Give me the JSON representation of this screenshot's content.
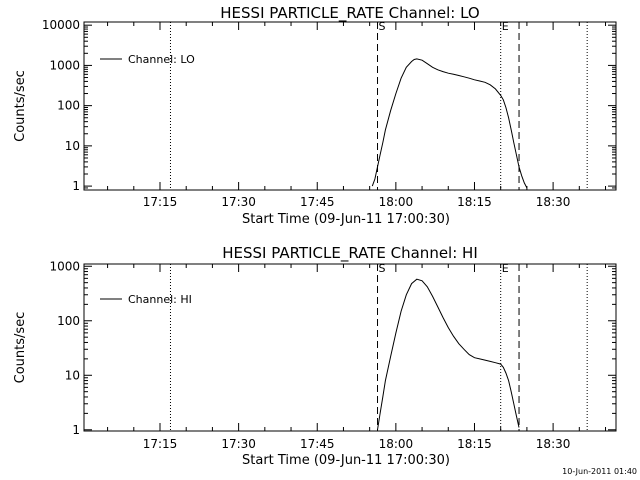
{
  "footer": {
    "timestamp": "10-Jun-2011 01:40"
  },
  "chart_data": [
    {
      "type": "line",
      "title": "HESSI PARTICLE_RATE Channel: LO",
      "xlabel": "Start Time (09-Jun-11 17:00:30)",
      "ylabel": "Counts/sec",
      "yscale": "log",
      "ylim": [
        0.8,
        12000
      ],
      "xlim": [
        "17:00:30",
        "18:42:00"
      ],
      "x_ticks": [
        "17:15",
        "17:30",
        "17:45",
        "18:00",
        "18:15",
        "18:30"
      ],
      "y_ticks": [
        "1",
        "10",
        "100",
        "1000",
        "10000"
      ],
      "legend": {
        "position": "top-left",
        "entries": [
          "Channel: LO"
        ]
      },
      "markers": [
        {
          "label": "",
          "time": "17:00:30",
          "style": "dotted"
        },
        {
          "label": "",
          "time": "17:17:00",
          "style": "dotted"
        },
        {
          "label": "S",
          "time": "17:56:30",
          "style": "dashed"
        },
        {
          "label": "E",
          "time": "18:20:00",
          "style": "dotted"
        },
        {
          "label": "",
          "time": "18:23:30",
          "style": "dashed"
        },
        {
          "label": "",
          "time": "18:36:30",
          "style": "dotted"
        }
      ],
      "series": [
        {
          "name": "Channel: LO",
          "x": [
            "17:55:30",
            "17:56:00",
            "17:56:30",
            "17:57:00",
            "17:57:30",
            "17:58:00",
            "17:59:00",
            "18:00:00",
            "18:01:00",
            "18:02:00",
            "18:03:00",
            "18:03:30",
            "18:04:00",
            "18:05:00",
            "18:06:00",
            "18:07:00",
            "18:08:00",
            "18:09:00",
            "18:10:00",
            "18:11:00",
            "18:12:00",
            "18:13:00",
            "18:14:00",
            "18:15:00",
            "18:16:00",
            "18:17:00",
            "18:18:00",
            "18:19:00",
            "18:20:00",
            "18:20:30",
            "18:21:00",
            "18:21:30",
            "18:22:00",
            "18:22:30",
            "18:23:00",
            "18:23:30",
            "18:24:00",
            "18:24:30",
            "18:25:00"
          ],
          "y": [
            1,
            1.5,
            3,
            6,
            12,
            25,
            75,
            200,
            480,
            900,
            1250,
            1400,
            1450,
            1350,
            1100,
            900,
            780,
            700,
            640,
            600,
            560,
            520,
            480,
            440,
            410,
            380,
            330,
            260,
            180,
            140,
            90,
            50,
            25,
            12,
            6,
            3,
            1.8,
            1.2,
            0.9
          ]
        }
      ]
    },
    {
      "type": "line",
      "title": "HESSI PARTICLE_RATE Channel: HI",
      "xlabel": "Start Time (09-Jun-11 17:00:30)",
      "ylabel": "Counts/sec",
      "yscale": "log",
      "ylim": [
        0.95,
        1100
      ],
      "xlim": [
        "17:00:30",
        "18:42:00"
      ],
      "x_ticks": [
        "17:15",
        "17:30",
        "17:45",
        "18:00",
        "18:15",
        "18:30"
      ],
      "y_ticks": [
        "1",
        "10",
        "100",
        "1000"
      ],
      "legend": {
        "position": "top-left",
        "entries": [
          "Channel: HI"
        ]
      },
      "markers": [
        {
          "label": "",
          "time": "17:00:30",
          "style": "dotted"
        },
        {
          "label": "",
          "time": "17:17:00",
          "style": "dotted"
        },
        {
          "label": "S",
          "time": "17:56:30",
          "style": "dashed"
        },
        {
          "label": "E",
          "time": "18:20:00",
          "style": "dotted"
        },
        {
          "label": "",
          "time": "18:23:30",
          "style": "dashed"
        },
        {
          "label": "",
          "time": "18:36:30",
          "style": "dotted"
        }
      ],
      "series": [
        {
          "name": "Channel: HI",
          "x": [
            "17:56:30",
            "17:57:00",
            "17:57:30",
            "17:58:00",
            "17:59:00",
            "18:00:00",
            "18:01:00",
            "18:02:00",
            "18:03:00",
            "18:04:00",
            "18:05:00",
            "18:06:00",
            "18:07:00",
            "18:08:00",
            "18:09:00",
            "18:10:00",
            "18:11:00",
            "18:12:00",
            "18:13:00",
            "18:14:00",
            "18:15:00",
            "18:16:00",
            "18:17:00",
            "18:18:00",
            "18:19:00",
            "18:20:00",
            "18:20:30",
            "18:21:00",
            "18:21:30",
            "18:22:00",
            "18:22:30",
            "18:23:00",
            "18:23:30"
          ],
          "y": [
            1,
            2,
            4,
            8,
            22,
            60,
            150,
            300,
            480,
            580,
            540,
            420,
            280,
            180,
            115,
            75,
            52,
            38,
            30,
            24,
            21,
            20,
            19,
            18,
            17,
            16,
            14,
            11,
            8,
            5,
            3,
            1.8,
            1.1
          ]
        }
      ]
    }
  ]
}
